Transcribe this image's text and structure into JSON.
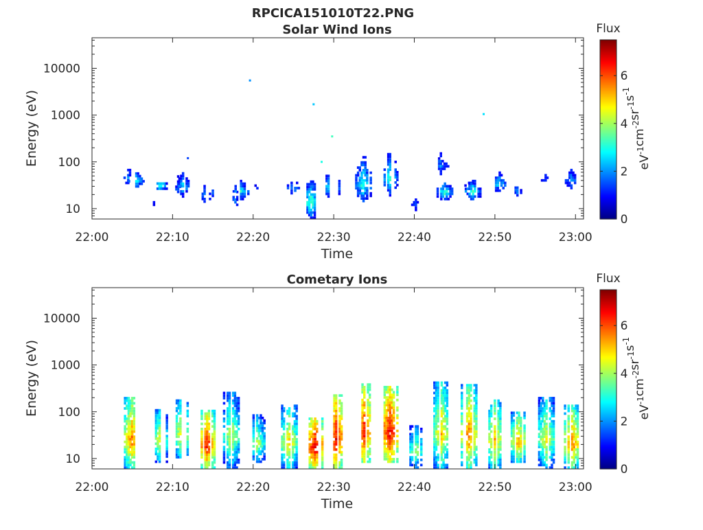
{
  "figure": {
    "title": "RPCICA151010T22.PNG"
  },
  "chart_data": [
    {
      "type": "heatmap",
      "title": "Solar Wind Ions",
      "xlabel": "Time",
      "ylabel": "Energy (eV)",
      "y_scale": "log",
      "ylim": [
        6,
        45000
      ],
      "xlim": [
        "22:00",
        "23:01"
      ],
      "x_ticks": [
        "22:00",
        "22:10",
        "22:20",
        "22:30",
        "22:40",
        "22:50",
        "23:00"
      ],
      "y_ticks": [
        "10",
        "100",
        "1000",
        "10000"
      ],
      "colorbar": {
        "title": "Flux",
        "label": "eV-1cm-2sr-1s-1",
        "label_parts": [
          [
            "eV",
            "-1"
          ],
          [
            "cm",
            "-2"
          ],
          [
            "sr",
            "-1"
          ],
          [
            "s",
            "-1"
          ]
        ],
        "range": [
          0,
          7.5
        ],
        "ticks": [
          "0",
          "2",
          "4",
          "6"
        ],
        "colormap": "jet"
      },
      "grid": false,
      "clusters": [
        {
          "t": 4.5,
          "lo": 20,
          "hi": 140,
          "f": 1.8
        },
        {
          "t": 5.5,
          "lo": 28,
          "hi": 60,
          "f": 3.0
        },
        {
          "t": 7.7,
          "lo": 6,
          "hi": 36,
          "f": 1.2
        },
        {
          "t": 8.6,
          "lo": 25,
          "hi": 36,
          "f": 3.0
        },
        {
          "t": 10.7,
          "lo": 10,
          "hi": 100,
          "f": 1.6
        },
        {
          "t": 11.3,
          "lo": 15,
          "hi": 70,
          "f": 2.6
        },
        {
          "t": 14.2,
          "lo": 8,
          "hi": 60,
          "f": 2.0
        },
        {
          "t": 15.0,
          "lo": 12,
          "hi": 45,
          "f": 1.5
        },
        {
          "t": 17.8,
          "lo": 6,
          "hi": 55,
          "f": 1.7
        },
        {
          "t": 18.5,
          "lo": 15,
          "hi": 40,
          "f": 3.0
        },
        {
          "t": 20.3,
          "lo": 12,
          "hi": 80,
          "f": 1.2
        },
        {
          "t": 24.0,
          "lo": 25,
          "hi": 90,
          "f": 1.3
        },
        {
          "t": 25.0,
          "lo": 20,
          "hi": 40,
          "f": 2.5
        },
        {
          "t": 27.2,
          "lo": 6,
          "hi": 40,
          "f": 3.6
        },
        {
          "t": 29.8,
          "lo": 15,
          "hi": 60,
          "f": 3.4
        },
        {
          "t": 33.7,
          "lo": 12,
          "hi": 130,
          "f": 3.3
        },
        {
          "t": 37.0,
          "lo": 18,
          "hi": 150,
          "f": 3.2
        },
        {
          "t": 40.2,
          "lo": 6,
          "hi": 30,
          "f": 1.5
        },
        {
          "t": 43.3,
          "lo": 40,
          "hi": 200,
          "f": 2.2
        },
        {
          "t": 43.8,
          "lo": 15,
          "hi": 35,
          "f": 3.4
        },
        {
          "t": 46.8,
          "lo": 20,
          "hi": 60,
          "f": 1.6
        },
        {
          "t": 47.3,
          "lo": 15,
          "hi": 40,
          "f": 3.2
        },
        {
          "t": 50.6,
          "lo": 20,
          "hi": 60,
          "f": 2.8
        },
        {
          "t": 52.8,
          "lo": 18,
          "hi": 30,
          "f": 2.2
        },
        {
          "t": 56.3,
          "lo": 20,
          "hi": 120,
          "f": 1.4
        },
        {
          "t": 59.5,
          "lo": 20,
          "hi": 100,
          "f": 2.2
        }
      ],
      "specks": [
        {
          "t": 19.6,
          "e": 5500,
          "f": 2.0
        },
        {
          "t": 27.5,
          "e": 1700,
          "f": 2.4
        },
        {
          "t": 29.8,
          "e": 350,
          "f": 3.3
        },
        {
          "t": 48.6,
          "e": 1050,
          "f": 2.6
        },
        {
          "t": 11.9,
          "e": 120,
          "f": 1.4
        },
        {
          "t": 28.5,
          "e": 100,
          "f": 3.0
        }
      ]
    },
    {
      "type": "heatmap",
      "title": "Cometary Ions",
      "xlabel": "Time",
      "ylabel": "Energy (eV)",
      "y_scale": "log",
      "ylim": [
        6,
        45000
      ],
      "xlim": [
        "22:00",
        "23:01"
      ],
      "x_ticks": [
        "22:00",
        "22:10",
        "22:20",
        "22:30",
        "22:40",
        "22:50",
        "23:00"
      ],
      "y_ticks": [
        "10",
        "100",
        "1000",
        "10000"
      ],
      "colorbar": {
        "title": "Flux",
        "label": "eV-1cm-2sr-1s-1",
        "label_parts": [
          [
            "eV",
            "-1"
          ],
          [
            "cm",
            "-2"
          ],
          [
            "sr",
            "-1"
          ],
          [
            "s",
            "-1"
          ]
        ],
        "range": [
          0,
          7.5
        ],
        "ticks": [
          "0",
          "2",
          "4",
          "6"
        ],
        "colormap": "jet"
      },
      "grid": false,
      "clusters": [
        {
          "t": 5.0,
          "lo": 6,
          "hi": 200,
          "f": 5.8
        },
        {
          "t": 8.4,
          "lo": 8,
          "hi": 110,
          "f": 4.6
        },
        {
          "t": 11.2,
          "lo": 10,
          "hi": 180,
          "f": 5.0
        },
        {
          "t": 14.3,
          "lo": 6,
          "hi": 100,
          "f": 6.5
        },
        {
          "t": 17.3,
          "lo": 6,
          "hi": 250,
          "f": 4.6
        },
        {
          "t": 20.5,
          "lo": 8,
          "hi": 80,
          "f": 4.4
        },
        {
          "t": 24.5,
          "lo": 6,
          "hi": 130,
          "f": 5.1
        },
        {
          "t": 27.7,
          "lo": 6,
          "hi": 75,
          "f": 6.9
        },
        {
          "t": 30.3,
          "lo": 6,
          "hi": 220,
          "f": 6.7
        },
        {
          "t": 33.8,
          "lo": 8,
          "hi": 360,
          "f": 6.5
        },
        {
          "t": 37.0,
          "lo": 8,
          "hi": 340,
          "f": 6.8
        },
        {
          "t": 40.2,
          "lo": 6,
          "hi": 50,
          "f": 4.2
        },
        {
          "t": 43.4,
          "lo": 6,
          "hi": 420,
          "f": 5.2
        },
        {
          "t": 46.8,
          "lo": 6,
          "hi": 350,
          "f": 5.8
        },
        {
          "t": 50.0,
          "lo": 6,
          "hi": 180,
          "f": 5.3
        },
        {
          "t": 53.0,
          "lo": 8,
          "hi": 100,
          "f": 5.4
        },
        {
          "t": 56.4,
          "lo": 6,
          "hi": 200,
          "f": 4.8
        },
        {
          "t": 59.6,
          "lo": 6,
          "hi": 130,
          "f": 5.8
        }
      ],
      "specks": []
    }
  ]
}
